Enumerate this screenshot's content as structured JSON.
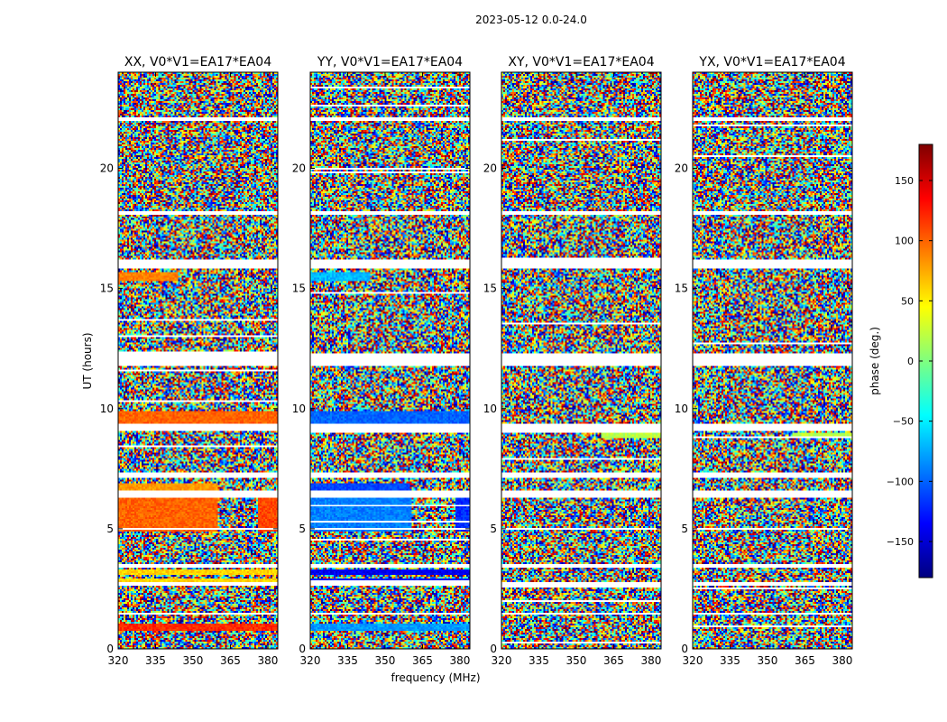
{
  "chart_data": {
    "type": "heatmap",
    "title": "2023-05-12 0.0-24.0",
    "xlabel": "frequency (MHz)",
    "ylabel": "UT (hours)",
    "xlim": [
      320,
      384
    ],
    "ylim": [
      0,
      24
    ],
    "x_ticks": [
      320,
      335,
      350,
      365,
      380
    ],
    "y_ticks": [
      0,
      5,
      10,
      15,
      20
    ],
    "colorbar": {
      "label": "phase (deg.)",
      "range": [
        -180,
        180
      ],
      "ticks": [
        150,
        100,
        50,
        0,
        -50,
        -100,
        -150
      ],
      "tick_labels": [
        "150",
        "100",
        "50",
        "0",
        "−50",
        "−100",
        "−150"
      ],
      "colormap": "jet",
      "stops": [
        "#00007f",
        "#0000ff",
        "#007fff",
        "#00ffff",
        "#7fff7f",
        "#ffff00",
        "#ff7f00",
        "#ff0000",
        "#7f0000"
      ]
    },
    "flagged_ut_ranges": [
      [
        11.8,
        12.0
      ],
      [
        12.0,
        12.3
      ],
      [
        15.8,
        16.2
      ],
      [
        22.0,
        22.1
      ],
      [
        18.1,
        18.25
      ],
      [
        9.1,
        9.35
      ],
      [
        7.1,
        7.35
      ],
      [
        6.3,
        6.6
      ],
      [
        4.95,
        5.05
      ],
      [
        3.4,
        3.5
      ],
      [
        2.6,
        2.75
      ],
      [
        1.4,
        1.5
      ]
    ],
    "panels": [
      {
        "title": "XX, V0*V1=EA17*EA04",
        "coherent_segments": [
          {
            "ut": [
              0.75,
              1.05
            ],
            "phase": 120,
            "freq": [
              320,
              384
            ]
          },
          {
            "ut": [
              2.75,
              2.95
            ],
            "phase": 60,
            "freq": [
              320,
              384
            ]
          },
          {
            "ut": [
              3.1,
              3.3
            ],
            "phase": 60,
            "freq": [
              320,
              384
            ]
          },
          {
            "ut": [
              4.9,
              6.3
            ],
            "phase": 100,
            "freq": [
              320,
              360
            ]
          },
          {
            "ut": [
              4.9,
              6.3
            ],
            "phase": 110,
            "freq": [
              376,
              384
            ]
          },
          {
            "ut": [
              6.5,
              6.9
            ],
            "phase": 80,
            "freq": [
              320,
              360
            ]
          },
          {
            "ut": [
              9.4,
              9.9
            ],
            "phase": 100,
            "freq": [
              320,
              384
            ]
          },
          {
            "ut": [
              11.9,
              12.05
            ],
            "phase": 110,
            "freq": [
              320,
              384
            ]
          },
          {
            "ut": [
              15.3,
              15.7
            ],
            "phase": 90,
            "freq": [
              320,
              344
            ]
          }
        ]
      },
      {
        "title": "YY, V0*V1=EA17*EA04",
        "coherent_segments": [
          {
            "ut": [
              0.75,
              1.05
            ],
            "phase": -80,
            "freq": [
              320,
              384
            ]
          },
          {
            "ut": [
              2.75,
              2.95
            ],
            "phase": -130,
            "freq": [
              320,
              384
            ]
          },
          {
            "ut": [
              3.1,
              3.3
            ],
            "phase": -140,
            "freq": [
              320,
              384
            ]
          },
          {
            "ut": [
              4.9,
              6.3
            ],
            "phase": -90,
            "freq": [
              320,
              361
            ]
          },
          {
            "ut": [
              4.9,
              6.3
            ],
            "phase": -120,
            "freq": [
              378,
              384
            ]
          },
          {
            "ut": [
              6.5,
              6.9
            ],
            "phase": -110,
            "freq": [
              320,
              360
            ]
          },
          {
            "ut": [
              9.4,
              9.9
            ],
            "phase": -100,
            "freq": [
              320,
              384
            ]
          },
          {
            "ut": [
              11.9,
              12.05
            ],
            "phase": -120,
            "freq": [
              320,
              384
            ]
          },
          {
            "ut": [
              15.3,
              15.7
            ],
            "phase": -70,
            "freq": [
              320,
              344
            ]
          }
        ]
      },
      {
        "title": "XY, V0*V1=EA17*EA04",
        "coherent_segments": [
          {
            "ut": [
              21.95,
              22.05
            ],
            "phase": 160,
            "freq": [
              320,
              384
            ]
          },
          {
            "ut": [
              8.8,
              9.0
            ],
            "phase": 20,
            "freq": [
              360,
              384
            ]
          }
        ]
      },
      {
        "title": "YX, V0*V1=EA17*EA04",
        "coherent_segments": [
          {
            "ut": [
              21.95,
              22.05
            ],
            "phase": 160,
            "freq": [
              320,
              384
            ]
          },
          {
            "ut": [
              8.8,
              9.0
            ],
            "phase": 20,
            "freq": [
              360,
              384
            ]
          }
        ]
      }
    ]
  }
}
